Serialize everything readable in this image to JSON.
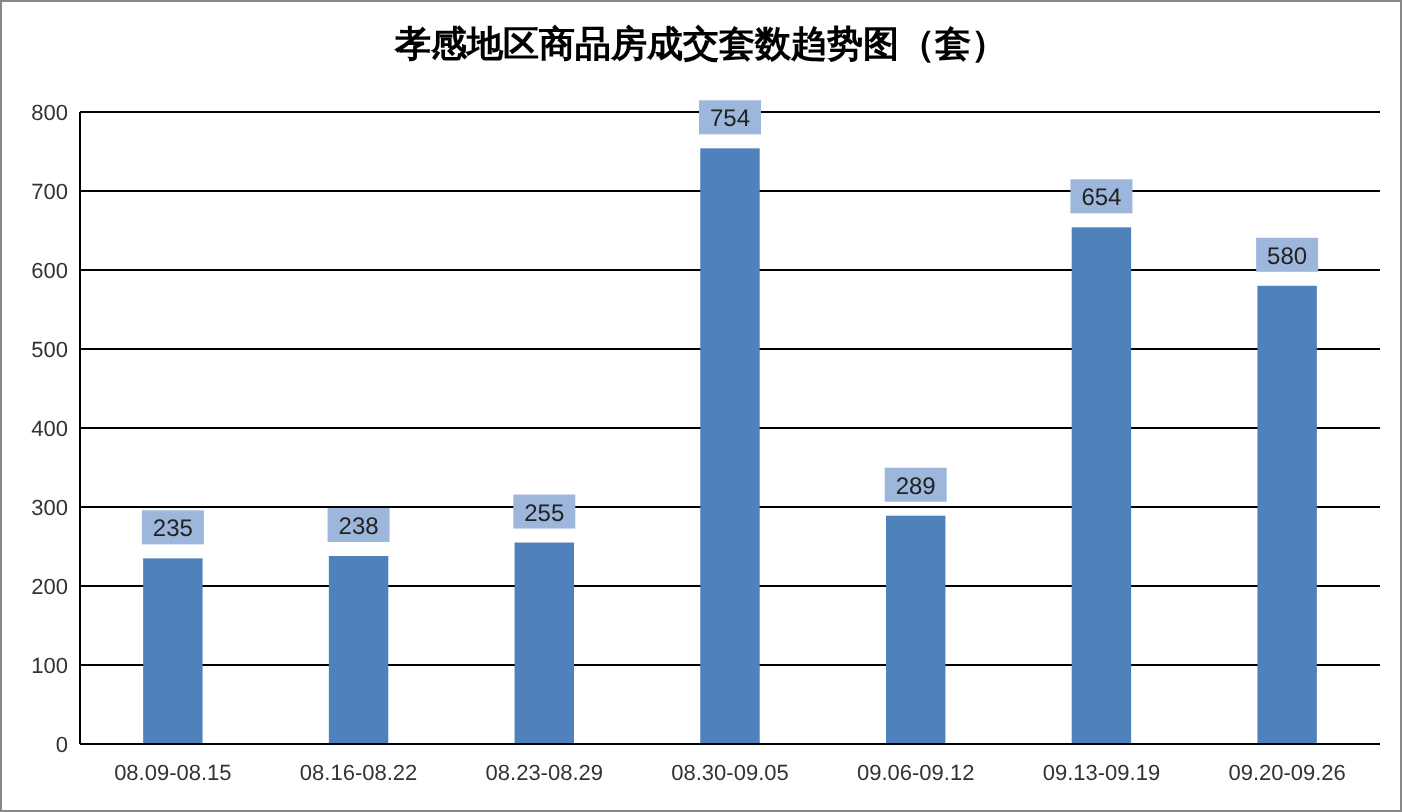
{
  "chart_data": {
    "type": "bar",
    "title": "孝感地区商品房成交套数趋势图（套）",
    "categories": [
      "08.09-08.15",
      "08.16-08.22",
      "08.23-08.29",
      "08.30-09.05",
      "09.06-09.12",
      "09.13-09.19",
      "09.20-09.26"
    ],
    "values": [
      235,
      238,
      255,
      754,
      289,
      654,
      580
    ],
    "color": "#4f81bd",
    "ylim": [
      0,
      800
    ],
    "yticks": [
      0,
      100,
      200,
      300,
      400,
      500,
      600,
      700,
      800
    ],
    "grid": "y",
    "data_labels": true
  }
}
